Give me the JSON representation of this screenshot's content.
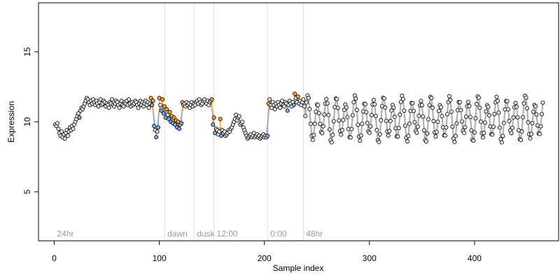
{
  "chart_data": {
    "type": "scatter",
    "xlabel": "Sample index",
    "ylabel": "Expression",
    "xlim": [
      -15,
      480
    ],
    "ylim": [
      1.5,
      18.5
    ],
    "x_ticks": [
      0,
      100,
      200,
      300,
      400
    ],
    "y_ticks": [
      5,
      10,
      15
    ],
    "grid": false,
    "legend": "none",
    "colors": {
      "point_fill_normal": "#e8e8e8",
      "point_fill_high": "#f5a623",
      "point_fill_low": "#7fa7e0",
      "point_stroke": "#000000",
      "deviation_high": "#f5a623",
      "deviation_low": "#7fa7e0",
      "fit_line": "#b0b0b0",
      "section_line": "#dcdcdc",
      "section_text": "#9a9a9a"
    },
    "sections": [
      {
        "label": "24hr",
        "x": 0
      },
      {
        "label": "dawn",
        "x": 105
      },
      {
        "label": "dusk",
        "x": 133
      },
      {
        "label": "12:00",
        "x": 152
      },
      {
        "label": "0:00",
        "x": 203
      },
      {
        "label": "48hr",
        "x": 237
      }
    ],
    "segments": [
      {
        "x_start": 1,
        "x_end": 94,
        "y": [
          9.8,
          9.7,
          9.9,
          9.5,
          9.2,
          9.0,
          9.3,
          8.9,
          9.1,
          8.8,
          9.2,
          9.4,
          9.0,
          9.3,
          9.6,
          9.4,
          9.7,
          9.5,
          9.8,
          10.0,
          10.2,
          10.4,
          10.6,
          10.3,
          10.8,
          11.0,
          10.9,
          11.1,
          11.3,
          11.5,
          11.7,
          11.6,
          11.4,
          11.2,
          11.5,
          11.3,
          11.6,
          11.4,
          11.2,
          11.5,
          11.3,
          11.1,
          11.4,
          11.6,
          11.2,
          11.3,
          11.5,
          11.4,
          11.1,
          11.3,
          11.2,
          11.0,
          11.4,
          11.3,
          11.6,
          11.2,
          11.1,
          11.3,
          11.5,
          11.4,
          11.2,
          11.0,
          11.3,
          11.5,
          11.2,
          11.1,
          11.4,
          11.3,
          11.5,
          11.2,
          11.6,
          11.3,
          11.1,
          11.4,
          11.2,
          11.3,
          11.5,
          11.4,
          11.2,
          11.0,
          11.3,
          11.5,
          11.2,
          11.4,
          11.1,
          11.3,
          11.5,
          11.2,
          11.4,
          11.0,
          11.3,
          11.7,
          11.2,
          11.5
        ]
      },
      {
        "x_start": 95,
        "x_end": 150,
        "y": [
          9.7,
          9.4,
          8.9,
          9.3,
          9.6,
          11.7,
          11.2,
          10.8,
          11.6,
          10.6,
          11.1,
          10.3,
          10.9,
          10.5,
          10.2,
          10.7,
          10.0,
          10.4,
          9.9,
          10.3,
          9.8,
          10.1,
          9.6,
          10.0,
          9.5,
          9.8,
          9.9,
          11.4,
          11.2,
          11.3,
          11.1,
          11.4,
          11.2,
          11.3,
          11.0,
          11.2,
          11.4,
          11.1,
          11.3,
          11.2,
          11.4,
          11.5,
          11.3,
          11.6,
          11.4,
          11.2,
          11.3,
          11.5,
          11.6,
          11.4,
          11.3,
          11.5,
          11.2,
          11.4,
          11.5,
          11.6
        ]
      },
      {
        "x_start": 151,
        "x_end": 203,
        "y": [
          9.8,
          10.3,
          9.2,
          9.5,
          9.4,
          9.1,
          9.3,
          10.2,
          9.0,
          9.4,
          9.2,
          9.3,
          9.0,
          9.1,
          9.2,
          9.4,
          9.3,
          9.5,
          9.6,
          9.8,
          10.0,
          10.2,
          10.5,
          10.1,
          10.3,
          10.4,
          9.8,
          9.9,
          10.0,
          9.6,
          9.4,
          9.2,
          9.0,
          8.8,
          8.9,
          9.0,
          9.1,
          8.9,
          9.0,
          9.2,
          8.9,
          9.0,
          9.1,
          8.9,
          9.0,
          8.8,
          8.9,
          9.0,
          9.1,
          8.9,
          9.0,
          8.9,
          9.0
        ]
      },
      {
        "x_start": 204,
        "x_end": 238,
        "y": [
          11.3,
          11.6,
          11.2,
          11.0,
          11.4,
          11.2,
          10.9,
          11.3,
          11.1,
          11.4,
          11.2,
          11.0,
          11.3,
          11.5,
          11.2,
          11.1,
          11.4,
          11.3,
          10.8,
          11.2,
          11.5,
          11.3,
          11.1,
          11.4,
          11.2,
          12.0,
          11.7,
          11.4,
          11.8,
          11.3,
          11.5,
          11.2,
          11.4,
          11.6,
          11.1
        ]
      }
    ],
    "oscillation": {
      "x_start": 239,
      "x_end": 465,
      "period": 9,
      "center": 10.2,
      "amplitude": 1.35
    }
  }
}
